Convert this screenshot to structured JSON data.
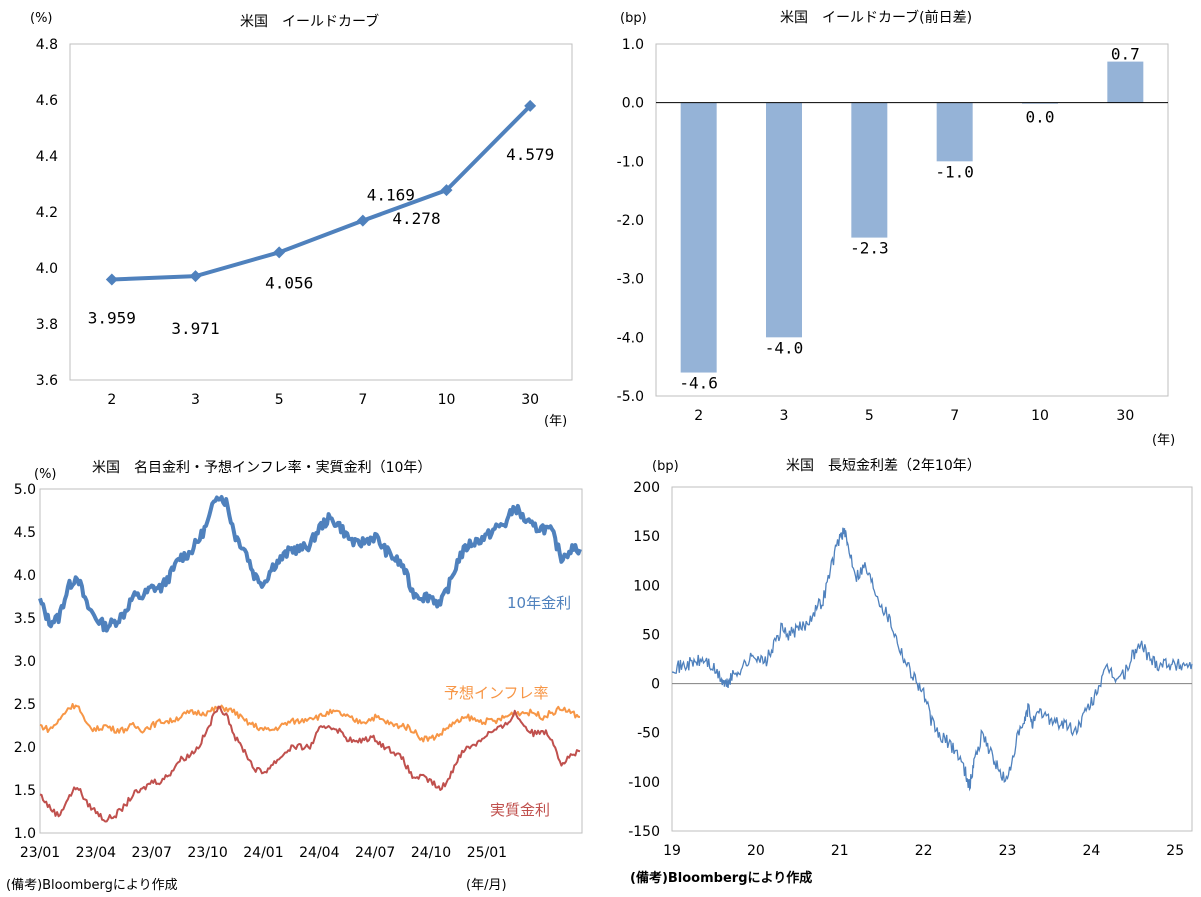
{
  "colors": {
    "line_blue": "#4f81bd",
    "bar_blue": "#95b3d7",
    "orange": "#f79646",
    "red": "#c0504d",
    "frame": "#bfbfbf"
  },
  "footnote_left": "(備考)Bloombergにより作成",
  "footnote_right": "(備考)Bloombergにより作成",
  "chart_data": [
    {
      "id": "yield_curve",
      "type": "line",
      "title": "米国　イールドカーブ",
      "ylabel": "(%)",
      "xlabel": "(年)",
      "categories": [
        "2",
        "3",
        "5",
        "7",
        "10",
        "30"
      ],
      "values": [
        3.959,
        3.971,
        4.056,
        4.169,
        4.278,
        4.579
      ],
      "value_labels": [
        "3.959",
        "3.971",
        "4.056",
        "4.169",
        "4.278",
        "4.579"
      ],
      "ylim": [
        3.6,
        4.8
      ],
      "yticks": [
        "3.6",
        "3.8",
        "4.0",
        "4.2",
        "4.4",
        "4.6",
        "4.8"
      ]
    },
    {
      "id": "yield_change",
      "type": "bar",
      "title": "米国　イールドカーブ(前日差)",
      "ylabel": "(bp)",
      "xlabel": "(年)",
      "categories": [
        "2",
        "3",
        "5",
        "7",
        "10",
        "30"
      ],
      "values": [
        -4.6,
        -4.0,
        -2.3,
        -1.0,
        0.0,
        0.7
      ],
      "value_labels": [
        "-4.6",
        "-4.0",
        "-2.3",
        "-1.0",
        "0.0",
        "0.7"
      ],
      "ylim": [
        -5.0,
        1.0
      ],
      "yticks": [
        "-5.0",
        "-4.0",
        "-3.0",
        "-2.0",
        "-1.0",
        "0.0",
        "1.0"
      ]
    },
    {
      "id": "real_rates",
      "type": "line",
      "title": "米国　名目金利・予想インフレ率・実質金利（10年）",
      "ylabel": "(%)",
      "xlabel": "(年/月)",
      "ylim": [
        1.0,
        5.0
      ],
      "yticks": [
        "1.0",
        "1.5",
        "2.0",
        "2.5",
        "3.0",
        "3.5",
        "4.0",
        "4.5",
        "5.0"
      ],
      "xticks": [
        "23/01",
        "23/04",
        "23/07",
        "23/10",
        "24/01",
        "24/04",
        "24/07",
        "24/10",
        "25/01"
      ],
      "series": [
        {
          "name": "10年金利",
          "x": [
            0,
            0.5,
            1,
            1.5,
            2,
            2.5,
            3,
            3.5,
            4,
            4.5,
            5,
            5.5,
            6,
            6.5,
            7,
            7.5,
            8,
            8.5,
            9,
            9.5,
            10,
            10.5,
            11,
            11.5,
            12,
            12.5,
            13,
            13.5,
            14,
            14.5,
            15,
            15.5,
            16,
            16.5,
            17,
            17.5,
            18,
            18.5,
            19,
            19.5,
            20,
            20.5,
            21,
            21.5,
            22,
            22.5,
            23,
            23.5,
            24,
            24.5,
            25,
            25.5,
            26,
            26.5,
            27,
            27.5,
            28,
            28.5,
            29
          ],
          "values": [
            3.7,
            3.45,
            3.5,
            3.85,
            4.0,
            3.65,
            3.5,
            3.4,
            3.45,
            3.55,
            3.75,
            3.75,
            3.85,
            3.85,
            4.0,
            4.2,
            4.25,
            4.4,
            4.6,
            4.95,
            4.85,
            4.45,
            4.3,
            4.0,
            3.9,
            4.1,
            4.2,
            4.3,
            4.3,
            4.35,
            4.55,
            4.65,
            4.6,
            4.45,
            4.35,
            4.4,
            4.45,
            4.3,
            4.2,
            4.1,
            3.8,
            3.75,
            3.75,
            3.65,
            3.9,
            4.2,
            4.35,
            4.4,
            4.45,
            4.55,
            4.6,
            4.8,
            4.65,
            4.55,
            4.55,
            4.5,
            4.2,
            4.3,
            4.3
          ]
        },
        {
          "name": "予想インフレ率",
          "x": [
            0,
            0.5,
            1,
            1.5,
            2,
            2.5,
            3,
            3.5,
            4,
            4.5,
            5,
            5.5,
            6,
            6.5,
            7,
            7.5,
            8,
            8.5,
            9,
            9.5,
            10,
            10.5,
            11,
            11.5,
            12,
            12.5,
            13,
            13.5,
            14,
            14.5,
            15,
            15.5,
            16,
            16.5,
            17,
            17.5,
            18,
            18.5,
            19,
            19.5,
            20,
            20.5,
            21,
            21.5,
            22,
            22.5,
            23,
            23.5,
            24,
            24.5,
            25,
            25.5,
            26,
            26.5,
            27,
            27.5,
            28,
            28.5,
            29
          ],
          "values": [
            2.25,
            2.2,
            2.3,
            2.45,
            2.5,
            2.25,
            2.2,
            2.25,
            2.2,
            2.2,
            2.25,
            2.2,
            2.25,
            2.3,
            2.3,
            2.35,
            2.4,
            2.4,
            2.4,
            2.45,
            2.45,
            2.4,
            2.3,
            2.25,
            2.2,
            2.2,
            2.25,
            2.3,
            2.3,
            2.35,
            2.35,
            2.4,
            2.4,
            2.35,
            2.3,
            2.3,
            2.35,
            2.3,
            2.25,
            2.25,
            2.2,
            2.1,
            2.1,
            2.15,
            2.25,
            2.3,
            2.35,
            2.3,
            2.3,
            2.3,
            2.35,
            2.4,
            2.4,
            2.4,
            2.35,
            2.4,
            2.45,
            2.4,
            2.35
          ]
        },
        {
          "name": "実質金利",
          "x": [
            0,
            0.5,
            1,
            1.5,
            2,
            2.5,
            3,
            3.5,
            4,
            4.5,
            5,
            5.5,
            6,
            6.5,
            7,
            7.5,
            8,
            8.5,
            9,
            9.5,
            10,
            10.5,
            11,
            11.5,
            12,
            12.5,
            13,
            13.5,
            14,
            14.5,
            15,
            15.5,
            16,
            16.5,
            17,
            17.5,
            18,
            18.5,
            19,
            19.5,
            20,
            20.5,
            21,
            21.5,
            22,
            22.5,
            23,
            23.5,
            24,
            24.5,
            25,
            25.5,
            26,
            26.5,
            27,
            27.5,
            28,
            28.5,
            29
          ],
          "values": [
            1.45,
            1.3,
            1.2,
            1.4,
            1.55,
            1.35,
            1.25,
            1.15,
            1.2,
            1.3,
            1.45,
            1.5,
            1.6,
            1.6,
            1.7,
            1.85,
            1.9,
            2.0,
            2.2,
            2.45,
            2.4,
            2.1,
            1.95,
            1.75,
            1.7,
            1.8,
            1.9,
            2.0,
            2.0,
            2.0,
            2.2,
            2.25,
            2.2,
            2.1,
            2.05,
            2.1,
            2.1,
            2.0,
            1.95,
            1.85,
            1.65,
            1.65,
            1.6,
            1.5,
            1.65,
            1.9,
            2.0,
            2.05,
            2.15,
            2.2,
            2.25,
            2.4,
            2.25,
            2.15,
            2.2,
            2.1,
            1.8,
            1.9,
            1.95
          ]
        }
      ]
    },
    {
      "id": "spread_2y10y",
      "type": "line",
      "title": "米国　長短金利差（2年10年）",
      "ylabel": "(bp)",
      "ylim": [
        -150,
        200
      ],
      "yticks": [
        "-150",
        "-100",
        "-50",
        "0",
        "50",
        "100",
        "150",
        "200"
      ],
      "xticks": [
        "19",
        "20",
        "21",
        "22",
        "23",
        "24",
        "25"
      ],
      "series": [
        {
          "name": "2年10年",
          "x": [
            0,
            0.1,
            0.2,
            0.3,
            0.4,
            0.5,
            0.6,
            0.65,
            0.7,
            0.8,
            0.9,
            1.0,
            1.1,
            1.2,
            1.3,
            1.4,
            1.5,
            1.6,
            1.7,
            1.8,
            1.9,
            2.0,
            2.05,
            2.1,
            2.2,
            2.3,
            2.4,
            2.5,
            2.6,
            2.7,
            2.8,
            2.9,
            3.0,
            3.1,
            3.2,
            3.3,
            3.4,
            3.5,
            3.55,
            3.6,
            3.7,
            3.8,
            3.9,
            4.0,
            4.1,
            4.2,
            4.25,
            4.3,
            4.4,
            4.5,
            4.6,
            4.7,
            4.8,
            4.9,
            5.0,
            5.1,
            5.2,
            5.3,
            5.4,
            5.5,
            5.6,
            5.7,
            5.8,
            5.9,
            6.0,
            6.1,
            6.2
          ],
          "values": [
            18,
            17,
            20,
            22,
            24,
            14,
            3,
            -2,
            5,
            14,
            22,
            30,
            20,
            35,
            55,
            50,
            55,
            60,
            75,
            85,
            120,
            150,
            155,
            140,
            110,
            120,
            100,
            80,
            65,
            40,
            20,
            5,
            -10,
            -40,
            -55,
            -60,
            -70,
            -90,
            -105,
            -80,
            -50,
            -70,
            -90,
            -100,
            -60,
            -40,
            -25,
            -40,
            -30,
            -35,
            -40,
            -42,
            -50,
            -35,
            -20,
            0,
            15,
            5,
            10,
            30,
            40,
            25,
            20,
            22,
            18,
            20,
            20
          ]
        }
      ]
    }
  ]
}
